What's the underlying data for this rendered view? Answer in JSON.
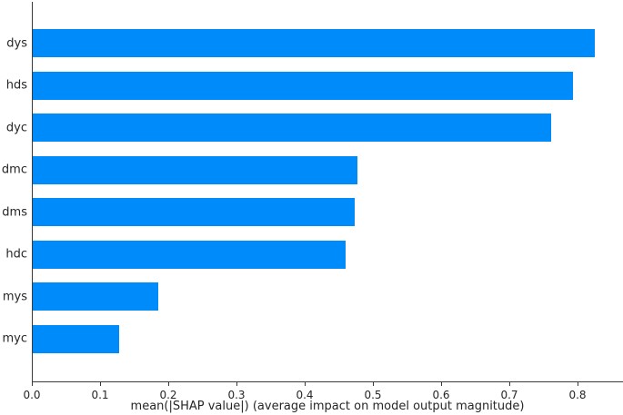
{
  "chart_data": {
    "type": "bar",
    "orientation": "horizontal",
    "title": "",
    "xlabel": "mean(|SHAP value|) (average impact on model output magnitude)",
    "ylabel": "",
    "categories": [
      "dys",
      "hds",
      "dyc",
      "dmc",
      "dms",
      "hdc",
      "mys",
      "myc"
    ],
    "values": [
      0.824,
      0.792,
      0.76,
      0.476,
      0.472,
      0.459,
      0.184,
      0.127
    ],
    "x_tick_labels": [
      "0.0",
      "0.1",
      "0.2",
      "0.3",
      "0.4",
      "0.5",
      "0.6",
      "0.7",
      "0.8"
    ],
    "x_tick_values": [
      0.0,
      0.1,
      0.2,
      0.3,
      0.4,
      0.5,
      0.6,
      0.7,
      0.8
    ],
    "xlim": [
      0.0,
      0.867
    ],
    "grid": false,
    "legend": null,
    "colors": {
      "bar": "#008bfb",
      "axis": "#3a3a3a",
      "text": "#262626",
      "background": "#ffffff"
    }
  }
}
